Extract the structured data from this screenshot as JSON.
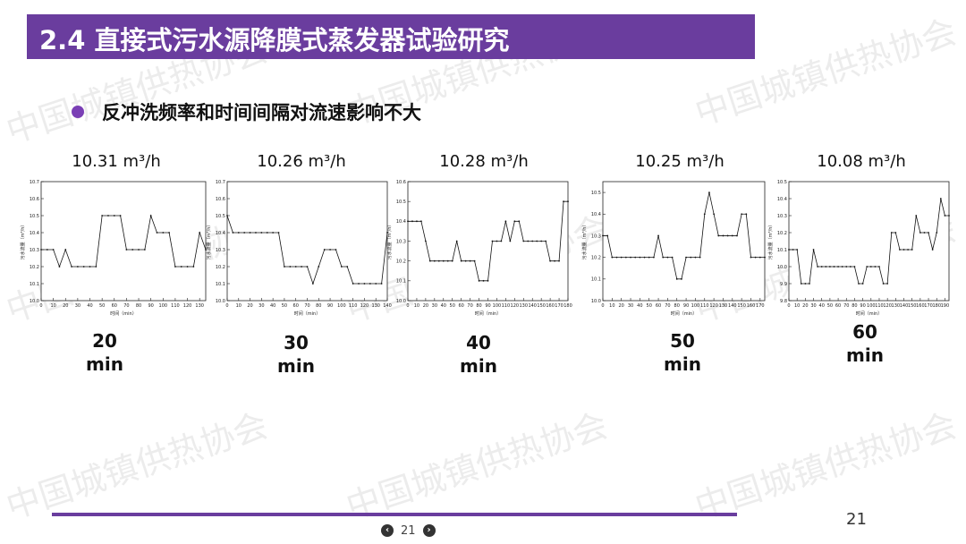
{
  "header": {
    "title": "2.4  直接式污水源降膜式蒸发器试验研究"
  },
  "bullet": {
    "text": "反冲洗频率和时间间隔对流速影响不大"
  },
  "watermark": "中国城镇供热协会",
  "page": {
    "number": "21",
    "pager_number": "21"
  },
  "colors": {
    "accent": "#6a3d9e",
    "bullet": "#7a3fb5"
  },
  "chart_data": [
    {
      "type": "line",
      "title": "10.31 m³/h",
      "interval_value": "20",
      "interval_unit": "min",
      "xlabel": "时间（min）",
      "ylabel": "污水流量（m³/h）",
      "xlim": [
        0,
        135
      ],
      "ylim": [
        10.0,
        10.7
      ],
      "xticks": [
        0,
        10,
        20,
        30,
        40,
        50,
        60,
        70,
        80,
        90,
        100,
        110,
        120,
        130
      ],
      "yticks": [
        10.0,
        10.1,
        10.2,
        10.3,
        10.4,
        10.5,
        10.6,
        10.7
      ],
      "x": [
        0,
        5,
        10,
        15,
        20,
        25,
        30,
        35,
        40,
        45,
        50,
        55,
        60,
        65,
        70,
        75,
        80,
        85,
        90,
        95,
        100,
        105,
        110,
        115,
        120,
        125,
        130,
        135
      ],
      "y": [
        10.3,
        10.3,
        10.3,
        10.2,
        10.3,
        10.2,
        10.2,
        10.2,
        10.2,
        10.2,
        10.5,
        10.5,
        10.5,
        10.5,
        10.3,
        10.3,
        10.3,
        10.3,
        10.5,
        10.4,
        10.4,
        10.4,
        10.2,
        10.2,
        10.2,
        10.2,
        10.4,
        10.3
      ]
    },
    {
      "type": "line",
      "title": "10.26 m³/h",
      "interval_value": "30",
      "interval_unit": "min",
      "xlabel": "时间（min）",
      "ylabel": "污水流量（m³/h）",
      "xlim": [
        0,
        140
      ],
      "ylim": [
        10.0,
        10.7
      ],
      "xticks": [
        0,
        10,
        20,
        30,
        40,
        50,
        60,
        70,
        80,
        90,
        100,
        110,
        120,
        130,
        140
      ],
      "yticks": [
        10.0,
        10.1,
        10.2,
        10.3,
        10.4,
        10.5,
        10.6,
        10.7
      ],
      "x": [
        0,
        5,
        10,
        15,
        20,
        25,
        30,
        35,
        40,
        45,
        50,
        55,
        60,
        65,
        70,
        75,
        80,
        85,
        90,
        95,
        100,
        105,
        110,
        115,
        120,
        125,
        130,
        135,
        140
      ],
      "y": [
        10.5,
        10.4,
        10.4,
        10.4,
        10.4,
        10.4,
        10.4,
        10.4,
        10.4,
        10.4,
        10.2,
        10.2,
        10.2,
        10.2,
        10.2,
        10.1,
        10.2,
        10.3,
        10.3,
        10.3,
        10.2,
        10.2,
        10.1,
        10.1,
        10.1,
        10.1,
        10.1,
        10.1,
        10.4
      ]
    },
    {
      "type": "line",
      "title": "10.28 m³/h",
      "interval_value": "40",
      "interval_unit": "min",
      "xlabel": "时间（min）",
      "ylabel": "污水流量（m³/h）",
      "xlim": [
        0,
        180
      ],
      "ylim": [
        10.0,
        10.6
      ],
      "xticks": [
        0,
        10,
        20,
        30,
        40,
        50,
        60,
        70,
        80,
        90,
        100,
        110,
        120,
        130,
        140,
        150,
        160,
        170,
        180
      ],
      "yticks": [
        10.0,
        10.1,
        10.2,
        10.3,
        10.4,
        10.5,
        10.6
      ],
      "x": [
        0,
        5,
        10,
        15,
        20,
        25,
        30,
        35,
        40,
        45,
        50,
        55,
        60,
        65,
        70,
        75,
        80,
        85,
        90,
        95,
        100,
        105,
        110,
        115,
        120,
        125,
        130,
        135,
        140,
        145,
        150,
        155,
        160,
        165,
        170,
        175,
        180
      ],
      "y": [
        10.4,
        10.4,
        10.4,
        10.4,
        10.3,
        10.2,
        10.2,
        10.2,
        10.2,
        10.2,
        10.2,
        10.3,
        10.2,
        10.2,
        10.2,
        10.2,
        10.1,
        10.1,
        10.1,
        10.3,
        10.3,
        10.3,
        10.4,
        10.3,
        10.4,
        10.4,
        10.3,
        10.3,
        10.3,
        10.3,
        10.3,
        10.3,
        10.2,
        10.2,
        10.2,
        10.5,
        10.5
      ]
    },
    {
      "type": "line",
      "title": "10.25 m³/h",
      "interval_value": "50",
      "interval_unit": "min",
      "xlabel": "时间（min）",
      "ylabel": "污水流量（m³/h）",
      "xlim": [
        0,
        175
      ],
      "ylim": [
        10.0,
        10.55
      ],
      "xticks": [
        0,
        10,
        20,
        30,
        40,
        50,
        60,
        70,
        80,
        90,
        100,
        110,
        120,
        130,
        140,
        150,
        160,
        170
      ],
      "yticks": [
        10.0,
        10.1,
        10.2,
        10.3,
        10.4,
        10.5
      ],
      "x": [
        0,
        5,
        10,
        15,
        20,
        25,
        30,
        35,
        40,
        45,
        50,
        55,
        60,
        65,
        70,
        75,
        80,
        85,
        90,
        95,
        100,
        105,
        110,
        115,
        120,
        125,
        130,
        135,
        140,
        145,
        150,
        155,
        160,
        165,
        170,
        175
      ],
      "y": [
        10.3,
        10.3,
        10.2,
        10.2,
        10.2,
        10.2,
        10.2,
        10.2,
        10.2,
        10.2,
        10.2,
        10.2,
        10.3,
        10.2,
        10.2,
        10.2,
        10.1,
        10.1,
        10.2,
        10.2,
        10.2,
        10.2,
        10.4,
        10.5,
        10.4,
        10.3,
        10.3,
        10.3,
        10.3,
        10.3,
        10.4,
        10.4,
        10.2,
        10.2,
        10.2,
        10.2
      ]
    },
    {
      "type": "line",
      "title": "10.08 m³/h",
      "interval_value": "60",
      "interval_unit": "min",
      "xlabel": "时间（min）",
      "ylabel": "污水流量（m³/h）",
      "xlim": [
        0,
        195
      ],
      "ylim": [
        9.8,
        10.5
      ],
      "xticks": [
        0,
        10,
        20,
        30,
        40,
        50,
        60,
        70,
        80,
        90,
        100,
        110,
        120,
        130,
        140,
        150,
        160,
        170,
        180,
        190
      ],
      "yticks": [
        9.8,
        9.9,
        10.0,
        10.1,
        10.2,
        10.3,
        10.4,
        10.5
      ],
      "x": [
        0,
        5,
        10,
        15,
        20,
        25,
        30,
        35,
        40,
        45,
        50,
        55,
        60,
        65,
        70,
        75,
        80,
        85,
        90,
        95,
        100,
        105,
        110,
        115,
        120,
        125,
        130,
        135,
        140,
        145,
        150,
        155,
        160,
        165,
        170,
        175,
        180,
        185,
        190,
        195
      ],
      "y": [
        10.1,
        10.1,
        10.1,
        9.9,
        9.9,
        9.9,
        10.1,
        10.0,
        10.0,
        10.0,
        10.0,
        10.0,
        10.0,
        10.0,
        10.0,
        10.0,
        10.0,
        9.9,
        9.9,
        10.0,
        10.0,
        10.0,
        10.0,
        9.9,
        9.9,
        10.2,
        10.2,
        10.1,
        10.1,
        10.1,
        10.1,
        10.3,
        10.2,
        10.2,
        10.2,
        10.1,
        10.2,
        10.4,
        10.3,
        10.3
      ]
    }
  ]
}
